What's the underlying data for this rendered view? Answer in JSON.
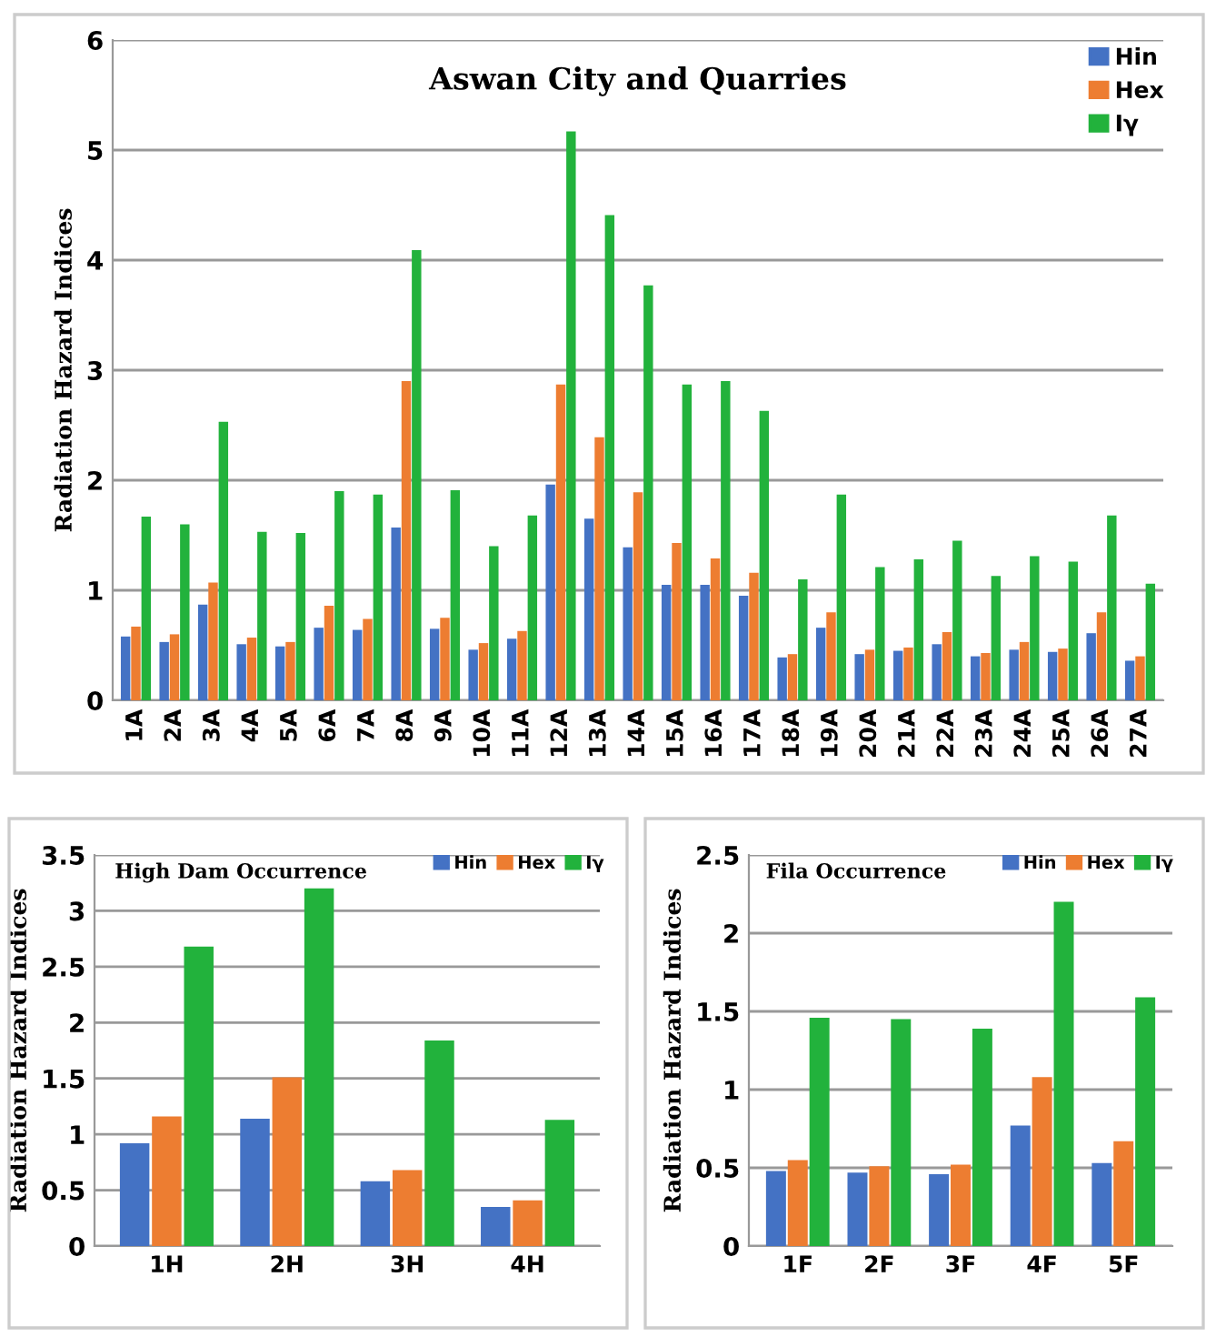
{
  "chart_data": [
    {
      "type": "bar",
      "title": "Aswan City and Quarries",
      "ylabel": "Radiation Hazard Indices",
      "categories": [
        "1A",
        "2A",
        "3A",
        "4A",
        "5A",
        "6A",
        "7A",
        "8A",
        "9A",
        "10A",
        "11A",
        "12A",
        "13A",
        "14A",
        "15A",
        "16A",
        "17A",
        "18A",
        "19A",
        "20A",
        "21A",
        "22A",
        "23A",
        "24A",
        "25A",
        "26A",
        "27A"
      ],
      "series": [
        {
          "name": "Hin",
          "color": "#4472c4",
          "values": [
            0.58,
            0.53,
            0.87,
            0.51,
            0.49,
            0.66,
            0.64,
            1.57,
            0.65,
            0.46,
            0.56,
            1.96,
            1.65,
            1.39,
            1.05,
            1.05,
            0.95,
            0.39,
            0.66,
            0.42,
            0.45,
            0.51,
            0.4,
            0.46,
            0.44,
            0.61,
            0.36
          ]
        },
        {
          "name": "Hex",
          "color": "#ed7d31",
          "values": [
            0.67,
            0.6,
            1.07,
            0.57,
            0.53,
            0.86,
            0.74,
            2.9,
            0.75,
            0.52,
            0.63,
            2.87,
            2.39,
            1.89,
            1.43,
            1.29,
            1.16,
            0.42,
            0.8,
            0.46,
            0.48,
            0.62,
            0.43,
            0.53,
            0.47,
            0.8,
            0.4
          ]
        },
        {
          "name": "Iγ",
          "color": "#22b23c",
          "values": [
            1.67,
            1.6,
            2.53,
            1.53,
            1.52,
            1.9,
            1.87,
            4.09,
            1.91,
            1.4,
            1.68,
            5.17,
            4.41,
            3.77,
            2.87,
            2.9,
            2.63,
            1.1,
            1.87,
            1.21,
            1.28,
            1.45,
            1.13,
            1.31,
            1.26,
            1.68,
            1.06
          ]
        }
      ],
      "ylim": [
        0,
        6
      ],
      "yticks": [
        0,
        1,
        2,
        3,
        4,
        5,
        6
      ],
      "grid": "y",
      "legend": "top right"
    },
    {
      "type": "bar",
      "title": "High Dam Occurrence",
      "ylabel": "Radiation Hazard Indices",
      "categories": [
        "1H",
        "2H",
        "3H",
        "4H"
      ],
      "series": [
        {
          "name": "Hin",
          "color": "#4472c4",
          "values": [
            0.92,
            1.14,
            0.58,
            0.35
          ]
        },
        {
          "name": "Hex",
          "color": "#ed7d31",
          "values": [
            1.16,
            1.51,
            0.68,
            0.41
          ]
        },
        {
          "name": "Iγ",
          "color": "#22b23c",
          "values": [
            2.68,
            3.2,
            1.84,
            1.13
          ]
        }
      ],
      "ylim": [
        0,
        3.5
      ],
      "yticks": [
        0,
        0.5,
        1,
        1.5,
        2,
        2.5,
        3,
        3.5
      ],
      "grid": "y",
      "legend": "top right"
    },
    {
      "type": "bar",
      "title": "Fila Occurrence",
      "ylabel": "Radiation Hazard Indices",
      "categories": [
        "1F",
        "2F",
        "3F",
        "4F",
        "5F"
      ],
      "series": [
        {
          "name": "Hin",
          "color": "#4472c4",
          "values": [
            0.48,
            0.47,
            0.46,
            0.77,
            0.53
          ]
        },
        {
          "name": "Hex",
          "color": "#ed7d31",
          "values": [
            0.55,
            0.51,
            0.52,
            1.08,
            0.67
          ]
        },
        {
          "name": "Iγ",
          "color": "#22b23c",
          "values": [
            1.46,
            1.45,
            1.39,
            2.2,
            1.59
          ]
        }
      ],
      "ylim": [
        0,
        2.5
      ],
      "yticks": [
        0,
        0.5,
        1,
        1.5,
        2,
        2.5
      ],
      "grid": "y",
      "legend": "top right"
    }
  ]
}
